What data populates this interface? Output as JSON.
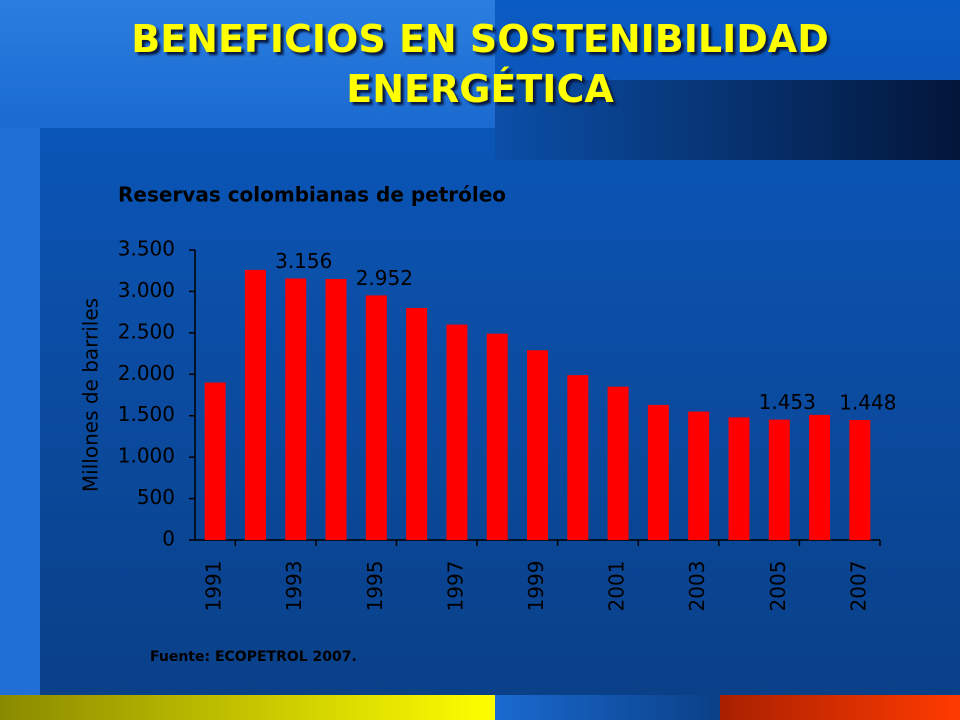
{
  "slide_title": "BENEFICIOS EN SOSTENIBILIDAD ENERGÉTICA",
  "source": "Fuente: ECOPETROL 2007.",
  "chart_data": {
    "type": "bar",
    "title": "Reservas colombianas de petróleo",
    "y_label": "Millones de barriles",
    "categories": [
      "1991",
      null,
      "1993",
      null,
      "1995",
      null,
      "1997",
      null,
      "1999",
      null,
      "2001",
      null,
      "2003",
      null,
      "2005",
      null,
      "2007"
    ],
    "values": [
      1900,
      3260,
      3156,
      3150,
      2952,
      2800,
      2600,
      2490,
      2290,
      1990,
      1850,
      1630,
      1550,
      1480,
      1453,
      1510,
      1448
    ],
    "value_labels": [
      null,
      null,
      "3.156",
      null,
      "2.952",
      null,
      null,
      null,
      null,
      null,
      null,
      null,
      null,
      null,
      "1.453",
      null,
      "1.448"
    ],
    "color": "#ff0000",
    "ylim": [
      0,
      3500
    ],
    "yticks": [
      0,
      500,
      {
        "value": 1000,
        "label": "1.000"
      },
      {
        "value": 1500,
        "label": "1.500"
      },
      {
        "value": 2000,
        "label": "2.000"
      },
      {
        "value": 2500,
        "label": "2.500"
      },
      {
        "value": 3000,
        "label": "3.000"
      },
      {
        "value": 3500,
        "label": "3.500"
      }
    ]
  }
}
